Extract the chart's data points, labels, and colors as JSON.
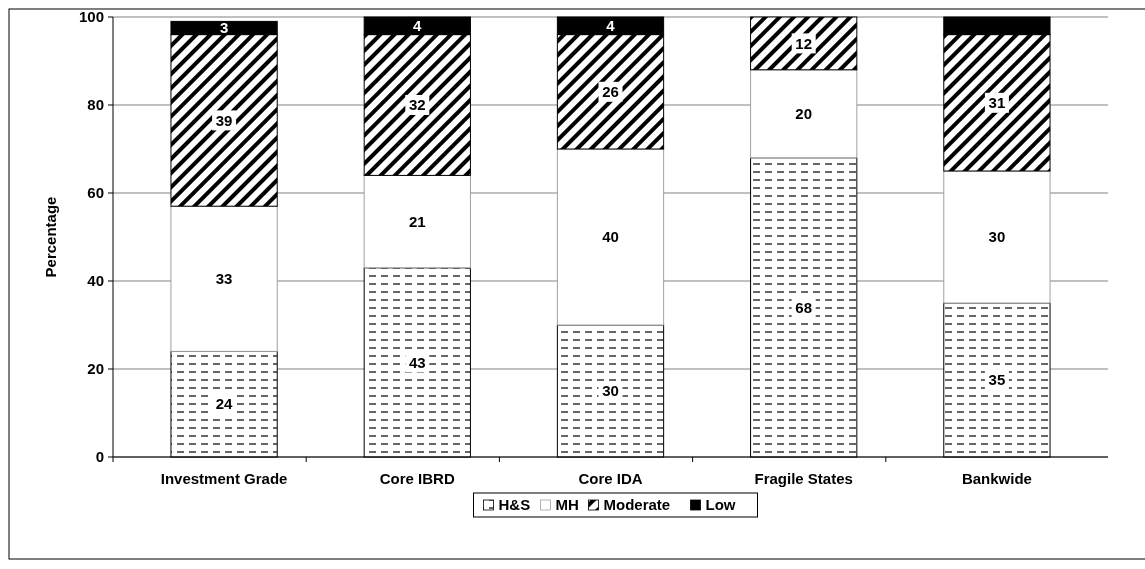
{
  "chart_data": {
    "type": "bar",
    "stacked": true,
    "ylabel": "Percentage",
    "categories": [
      "Investment Grade",
      "Core IBRD",
      "Core IDA",
      "Fragile States",
      "Bankwide"
    ],
    "series": [
      {
        "name": "H&S",
        "color": "#000000",
        "values": [
          24,
          43,
          30,
          68,
          35
        ],
        "value_labels": [
          "24",
          "43",
          "30",
          "68",
          "35"
        ]
      },
      {
        "name": "MH",
        "color": "#ffffff",
        "values": [
          33,
          21,
          40,
          20,
          30
        ],
        "value_labels": [
          "33",
          "21",
          "40",
          "20",
          "30"
        ]
      },
      {
        "name": "Moderate",
        "color": "#000000",
        "values": [
          39,
          32,
          26,
          12,
          31
        ],
        "value_labels": [
          "39",
          "32",
          "26",
          "12",
          "31"
        ]
      },
      {
        "name": "Low",
        "color": "#000000",
        "values": [
          3,
          4,
          4,
          0,
          4
        ],
        "value_labels": [
          "3",
          "4",
          "4",
          null,
          null
        ]
      }
    ],
    "ylim": [
      0,
      100
    ],
    "yticks": [
      0,
      20,
      40,
      60,
      80,
      100
    ],
    "grid": "y",
    "legend": "bottom"
  }
}
